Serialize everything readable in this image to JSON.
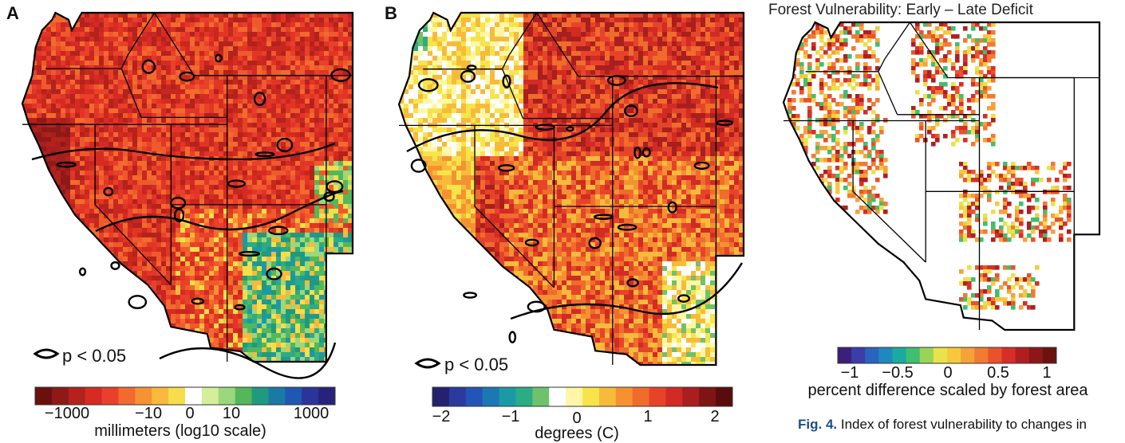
{
  "panels": [
    {
      "letter": "A",
      "legend_text": "p < 0.05",
      "colorbar": {
        "colors": [
          "#6b0f0f",
          "#8e1a17",
          "#b3221d",
          "#d52b23",
          "#e8402a",
          "#f26a2d",
          "#f79234",
          "#f9b93d",
          "#f7dd4c",
          "#ffffff",
          "#d4ee9a",
          "#9bd77b",
          "#53b85a",
          "#1f9a7e",
          "#1b79a8",
          "#1f57b2",
          "#2a3499",
          "#29227a"
        ],
        "ticks": [
          "−1000",
          "−10",
          "0",
          "10",
          "1000"
        ],
        "label": "millimeters (log10 scale)"
      }
    },
    {
      "letter": "B",
      "legend_text": "p < 0.05",
      "colorbar": {
        "colors": [
          "#25216e",
          "#2b3a9d",
          "#2455b6",
          "#1c78b3",
          "#1c99a7",
          "#2bab86",
          "#6ec26b",
          "#ffffff",
          "#fff7a6",
          "#f7e44b",
          "#f6bb3b",
          "#f49232",
          "#ef6c2c",
          "#e6442a",
          "#d12b24",
          "#a81f1d",
          "#7e1413",
          "#5a0c0c"
        ],
        "ticks": [
          "−2",
          "−1",
          "0",
          "1",
          "2"
        ],
        "label": "degrees (C)"
      }
    },
    {
      "title": "Forest Vulnerability:  Early – Late Deficit",
      "colorbar": {
        "colors": [
          "#3b1f7a",
          "#3a3ea6",
          "#2b63c0",
          "#1f88bd",
          "#1caaa0",
          "#3fbf6f",
          "#9bd35a",
          "#e9e24b",
          "#f7c83f",
          "#f6a23a",
          "#f27a33",
          "#e9522b",
          "#d62f27",
          "#b01f20",
          "#8c1716",
          "#6b120f"
        ],
        "ticks": [
          "−1",
          "−0.5",
          "0",
          "0.5",
          "1"
        ],
        "label": "percent difference scaled by forest area"
      }
    }
  ],
  "caption": {
    "label": "Fig. 4.",
    "text": "Index of forest vulnerability to changes in"
  }
}
